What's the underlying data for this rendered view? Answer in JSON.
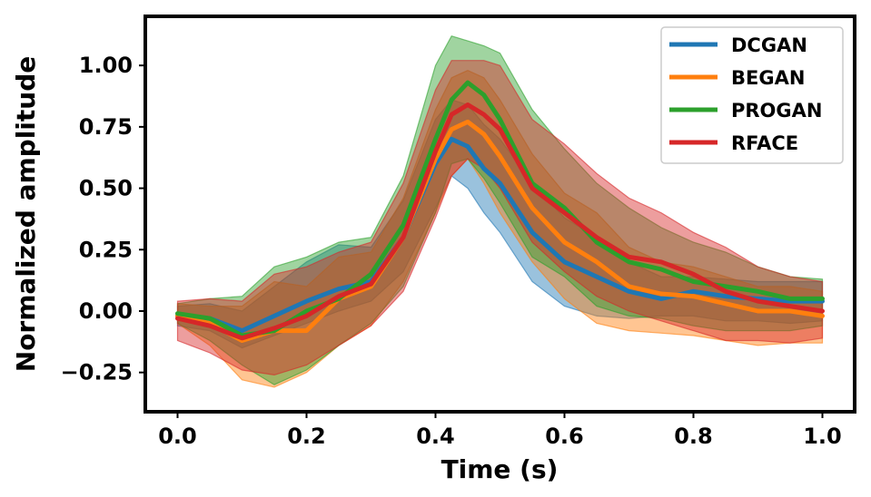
{
  "chart_data": {
    "type": "line",
    "title": "",
    "xlabel": "Time (s)",
    "ylabel": "Normalized amplitude",
    "xlim": [
      -0.05,
      1.05
    ],
    "ylim": [
      -0.41,
      1.2
    ],
    "xticks": [
      0.0,
      0.2,
      0.4,
      0.6,
      0.8,
      1.0
    ],
    "xtick_labels": [
      "0.0",
      "0.2",
      "0.4",
      "0.6",
      "0.8",
      "1.0"
    ],
    "yticks": [
      -0.25,
      0.0,
      0.25,
      0.5,
      0.75,
      1.0
    ],
    "ytick_labels": [
      "−0.25",
      "0.00",
      "0.25",
      "0.50",
      "0.75",
      "1.00"
    ],
    "grid": false,
    "legend_position": "top-right",
    "x": [
      0.0,
      0.05,
      0.1,
      0.15,
      0.2,
      0.25,
      0.3,
      0.35,
      0.4,
      0.425,
      0.45,
      0.475,
      0.5,
      0.55,
      0.6,
      0.65,
      0.7,
      0.75,
      0.8,
      0.85,
      0.9,
      0.95,
      1.0
    ],
    "series": [
      {
        "name": "DCGAN",
        "color": "#1f77b4",
        "mean": [
          -0.02,
          -0.03,
          -0.08,
          -0.02,
          0.04,
          0.09,
          0.12,
          0.3,
          0.6,
          0.7,
          0.67,
          0.58,
          0.52,
          0.32,
          0.2,
          0.14,
          0.08,
          0.05,
          0.08,
          0.06,
          0.05,
          0.04,
          0.04
        ],
        "lower": [
          -0.06,
          -0.08,
          -0.15,
          -0.1,
          -0.05,
          0.0,
          0.04,
          0.16,
          0.42,
          0.55,
          0.5,
          0.4,
          0.32,
          0.12,
          0.02,
          -0.02,
          -0.03,
          -0.02,
          -0.02,
          -0.04,
          -0.04,
          -0.05,
          -0.04
        ],
        "upper": [
          0.02,
          0.03,
          0.0,
          0.1,
          0.2,
          0.27,
          0.26,
          0.45,
          0.78,
          0.86,
          0.84,
          0.76,
          0.7,
          0.52,
          0.38,
          0.3,
          0.2,
          0.14,
          0.14,
          0.13,
          0.12,
          0.12,
          0.12
        ]
      },
      {
        "name": "BEGAN",
        "color": "#ff7f0e",
        "mean": [
          -0.02,
          -0.05,
          -0.12,
          -0.08,
          -0.08,
          0.05,
          0.1,
          0.3,
          0.62,
          0.74,
          0.77,
          0.72,
          0.63,
          0.42,
          0.28,
          0.2,
          0.1,
          0.07,
          0.06,
          0.03,
          0.0,
          0.0,
          -0.02
        ],
        "lower": [
          -0.05,
          -0.14,
          -0.28,
          -0.31,
          -0.25,
          -0.14,
          -0.06,
          0.12,
          0.4,
          0.55,
          0.62,
          0.52,
          0.4,
          0.2,
          0.05,
          -0.05,
          -0.08,
          -0.09,
          -0.1,
          -0.12,
          -0.14,
          -0.13,
          -0.13
        ],
        "upper": [
          0.03,
          0.02,
          0.02,
          0.12,
          0.1,
          0.22,
          0.24,
          0.46,
          0.82,
          0.95,
          0.98,
          0.95,
          0.86,
          0.64,
          0.48,
          0.4,
          0.26,
          0.2,
          0.18,
          0.14,
          0.1,
          0.1,
          0.08
        ]
      },
      {
        "name": "PROGAN",
        "color": "#2ca02c",
        "mean": [
          -0.01,
          -0.03,
          -0.1,
          -0.08,
          0.0,
          0.05,
          0.15,
          0.35,
          0.7,
          0.86,
          0.93,
          0.88,
          0.78,
          0.52,
          0.42,
          0.28,
          0.2,
          0.17,
          0.12,
          0.1,
          0.08,
          0.05,
          0.05
        ],
        "lower": [
          -0.05,
          -0.12,
          -0.22,
          -0.3,
          -0.24,
          -0.14,
          -0.05,
          0.1,
          0.4,
          0.6,
          0.62,
          0.54,
          0.44,
          0.22,
          0.14,
          0.02,
          -0.02,
          -0.03,
          -0.06,
          -0.08,
          -0.08,
          -0.08,
          -0.06
        ],
        "upper": [
          0.03,
          0.05,
          0.06,
          0.18,
          0.22,
          0.28,
          0.3,
          0.55,
          1.0,
          1.12,
          1.1,
          1.08,
          1.05,
          0.82,
          0.66,
          0.52,
          0.42,
          0.34,
          0.28,
          0.24,
          0.18,
          0.14,
          0.13
        ]
      },
      {
        "name": "RFACE",
        "color": "#d62728",
        "mean": [
          -0.03,
          -0.06,
          -0.11,
          -0.07,
          -0.02,
          0.06,
          0.11,
          0.3,
          0.65,
          0.8,
          0.84,
          0.8,
          0.74,
          0.5,
          0.4,
          0.3,
          0.22,
          0.2,
          0.15,
          0.08,
          0.04,
          0.02,
          0.0
        ],
        "lower": [
          -0.12,
          -0.17,
          -0.24,
          -0.26,
          -0.22,
          -0.14,
          -0.06,
          0.08,
          0.38,
          0.55,
          0.62,
          0.58,
          0.5,
          0.28,
          0.16,
          0.06,
          0.0,
          -0.04,
          -0.08,
          -0.12,
          -0.12,
          -0.13,
          -0.11
        ],
        "upper": [
          0.04,
          0.05,
          0.04,
          0.15,
          0.18,
          0.24,
          0.28,
          0.52,
          0.9,
          1.02,
          1.02,
          1.02,
          1.0,
          0.78,
          0.68,
          0.56,
          0.46,
          0.4,
          0.32,
          0.26,
          0.18,
          0.14,
          0.12
        ]
      }
    ]
  }
}
